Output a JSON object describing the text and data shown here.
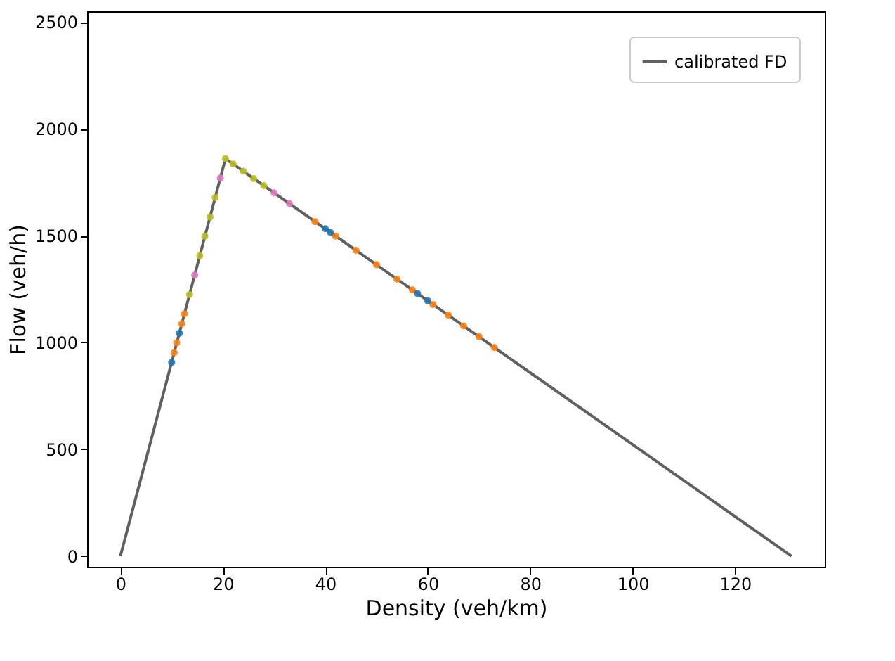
{
  "chart_data": {
    "type": "scatter",
    "xlabel": "Density (veh/km)",
    "ylabel": "Flow (veh/h)",
    "xlim": [
      -6.5,
      137.5
    ],
    "ylim": [
      -50,
      2550
    ],
    "xticks": [
      0,
      20,
      40,
      60,
      80,
      100,
      120
    ],
    "yticks": [
      0,
      500,
      1000,
      1500,
      2000,
      2500
    ],
    "grid": false,
    "legend": "top right",
    "marker": "circle",
    "series": [
      {
        "color": "#bcbd22",
        "x": [
          13.5,
          15.5,
          16.5,
          17.5,
          18.5,
          20.5,
          22,
          24,
          26,
          28
        ],
        "values": [
          1224,
          1406,
          1497,
          1587,
          1678,
          1860,
          1835,
          1801,
          1767,
          1734
        ]
      },
      {
        "color": "#ff7f0e",
        "x": [
          10.5,
          11,
          12,
          12.5,
          38,
          42,
          46,
          50,
          54,
          57,
          61,
          64,
          67,
          70,
          73
        ],
        "values": [
          952,
          998,
          1088,
          1134,
          1565,
          1498,
          1431,
          1364,
          1296,
          1246,
          1178,
          1128,
          1077,
          1027,
          976
        ]
      },
      {
        "color": "#1f77b4",
        "x": [
          10,
          11.5,
          40,
          41,
          58,
          60
        ],
        "values": [
          907,
          1043,
          1532,
          1515,
          1229,
          1195
        ]
      },
      {
        "color": "#e377c2",
        "x": [
          14.5,
          19.5,
          30,
          33
        ],
        "values": [
          1315,
          1769,
          1700,
          1650
        ]
      },
      {
        "type": "line",
        "name": "calibrated FD",
        "color": "#606060",
        "line_style": "solid",
        "marker": "none",
        "x": [
          0,
          20.5,
          131
        ],
        "values": [
          0,
          1860,
          0
        ]
      }
    ]
  }
}
